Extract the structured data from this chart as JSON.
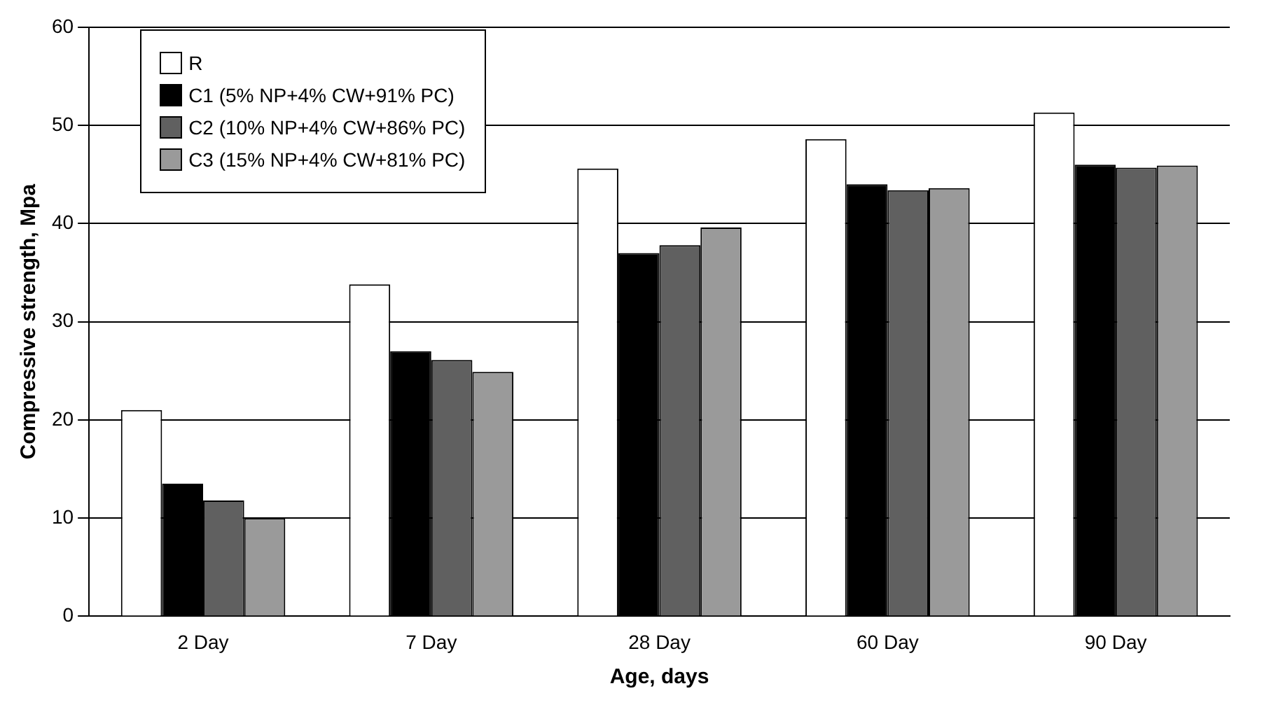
{
  "chart_data": {
    "type": "bar",
    "xlabel": "Age, days",
    "ylabel": "Compressive strength, Mpa",
    "categories": [
      "2 Day",
      "7 Day",
      "28 Day",
      "60 Day",
      "90 Day"
    ],
    "series": [
      {
        "name": "R",
        "color": "#ffffff",
        "values": [
          21,
          33.8,
          45.6,
          48.6,
          51.3
        ]
      },
      {
        "name": "C1 (5% NP+4% CW+91% PC)",
        "color": "#000000",
        "values": [
          13.5,
          27,
          37,
          44,
          46
        ]
      },
      {
        "name": "C2 (10% NP+4% CW+86% PC)",
        "color": "#606060",
        "values": [
          11.8,
          26.1,
          37.8,
          43.4,
          45.7
        ]
      },
      {
        "name": "C3 (15% NP+4% CW+81% PC)",
        "color": "#9a9a9a",
        "values": [
          10,
          24.9,
          39.6,
          43.6,
          45.9
        ]
      }
    ],
    "ylim": [
      0,
      60
    ],
    "yticks": [
      0,
      10,
      20,
      30,
      40,
      50,
      60
    ],
    "grid": "y",
    "legend": "top left"
  }
}
